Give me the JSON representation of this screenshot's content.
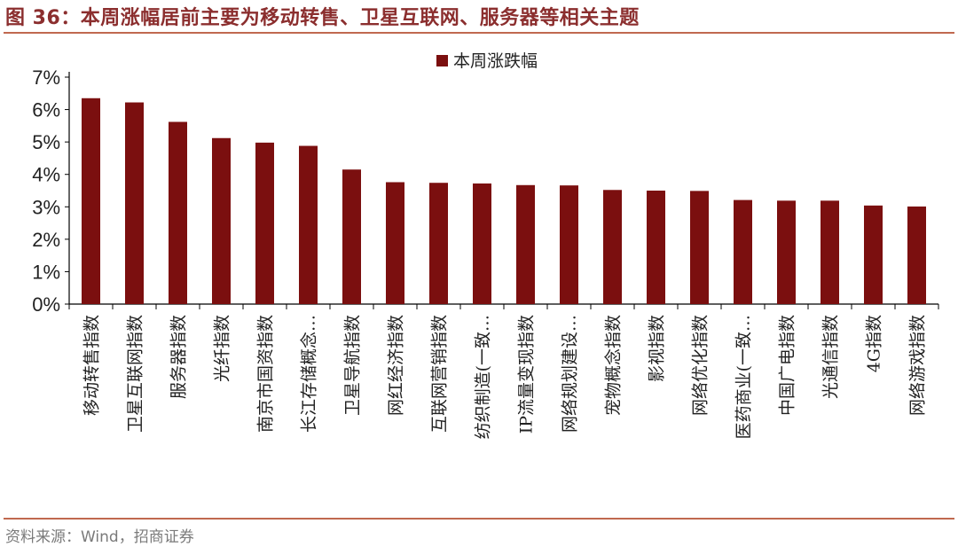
{
  "figure": {
    "title": "图 36：本周涨幅居前主要为移动转售、卫星互联网、服务器等相关主题",
    "source": "资料来源：Wind，招商证券"
  },
  "colors": {
    "bar": "#7b0f0f",
    "accent": "#c0694f",
    "title": "#8b2e2e"
  },
  "chart_data": {
    "type": "bar",
    "title": "",
    "xlabel": "",
    "ylabel": "",
    "ylim": [
      0,
      7
    ],
    "y_ticks": [
      "0%",
      "1%",
      "2%",
      "3%",
      "4%",
      "5%",
      "6%",
      "7%"
    ],
    "legend": {
      "position": "top-center"
    },
    "grid": false,
    "categories": [
      "移动转售指数",
      "卫星互联网指数",
      "服务器指数",
      "光纤指数",
      "南京市国资指数",
      "长江存储概念…",
      "卫星导航指数",
      "网红经济指数",
      "互联网营销指数",
      "纺织制造(一致…",
      "IP流量变现指数",
      "网络规划建设…",
      "宠物概念指数",
      "影视指数",
      "网络优化指数",
      "医药商业(一致…",
      "中国广电指数",
      "光通信指数",
      "4G指数",
      "网络游戏指数"
    ],
    "series": [
      {
        "name": "本周涨跌幅",
        "values": [
          6.35,
          6.22,
          5.62,
          5.12,
          4.98,
          4.88,
          4.15,
          3.76,
          3.74,
          3.72,
          3.67,
          3.66,
          3.52,
          3.5,
          3.49,
          3.21,
          3.19,
          3.19,
          3.04,
          3.01
        ]
      }
    ]
  }
}
